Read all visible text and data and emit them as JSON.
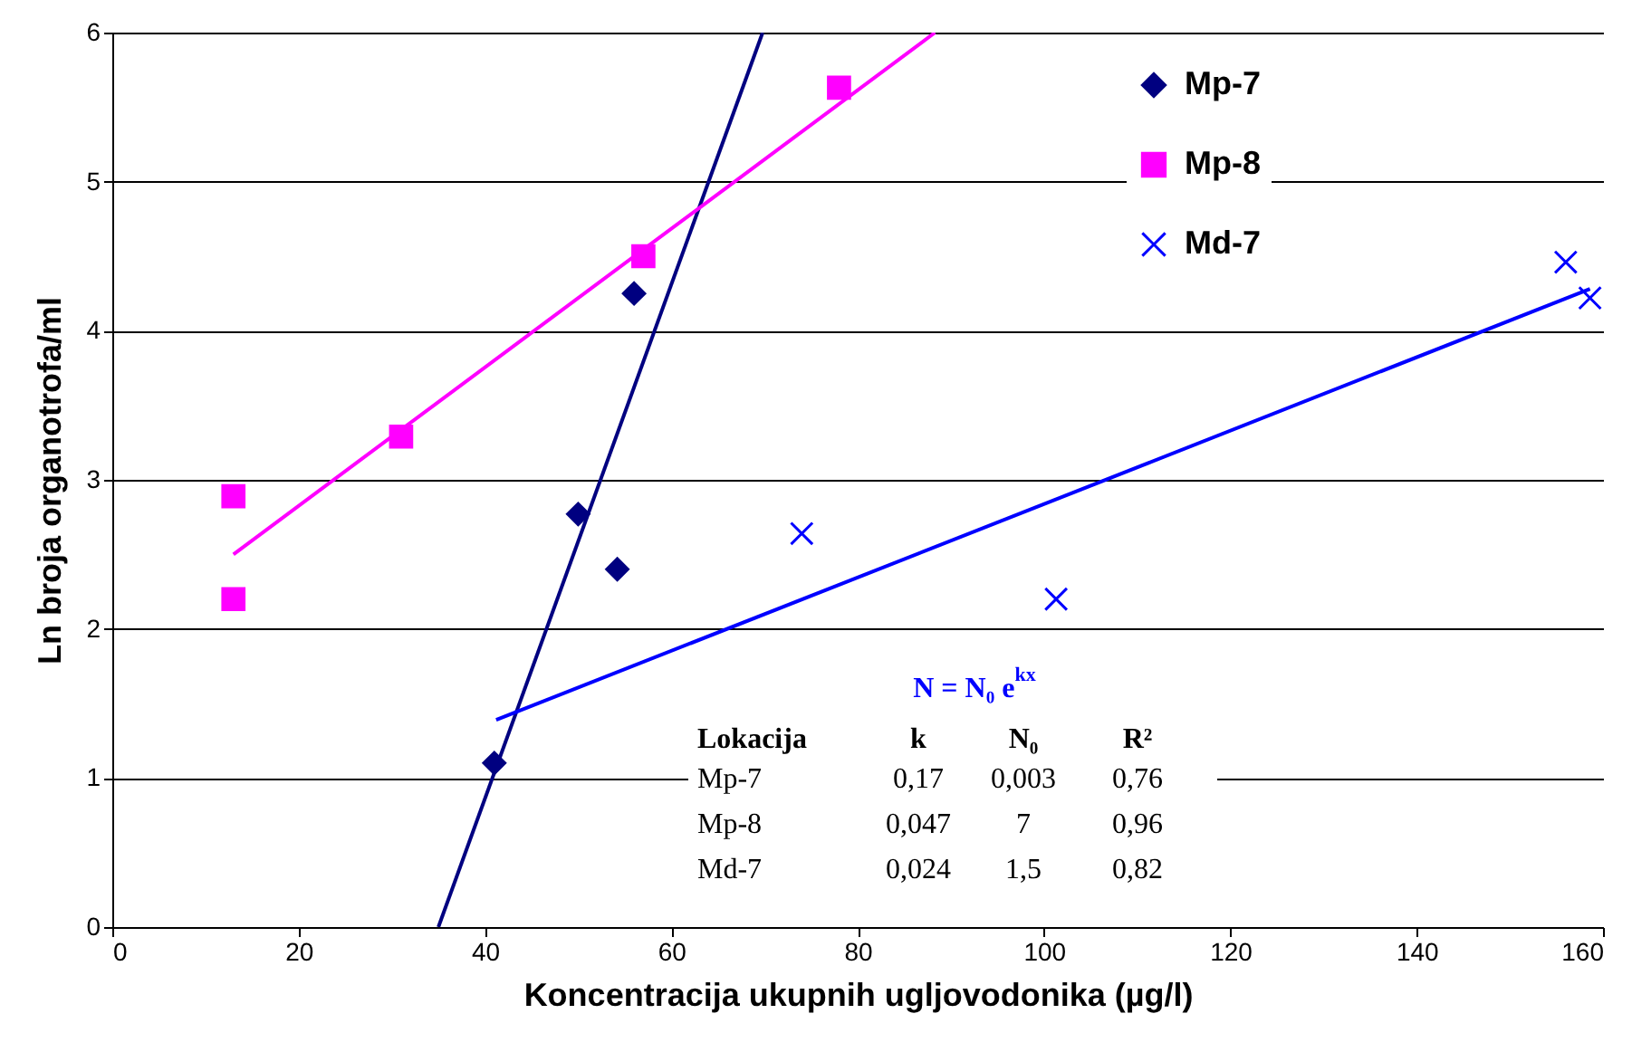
{
  "chart_data": {
    "type": "scatter",
    "xlabel": "Koncentracija ukupnih ugljovodonika (µg/l)",
    "ylabel": "Ln broja organotrofa/ml",
    "xlim": [
      0,
      160
    ],
    "xticks": [
      0,
      20,
      40,
      60,
      80,
      100,
      120,
      140,
      160
    ],
    "ylim": [
      0,
      6
    ],
    "yticks": [
      0,
      1,
      2,
      3,
      4,
      5,
      6
    ],
    "grid": "y",
    "legend": "top right",
    "series": [
      {
        "name": "Mp-7",
        "color": "#000080",
        "marker": "diamond",
        "x": [
          41,
          50,
          54.2,
          56
        ],
        "values": [
          1.1,
          2.77,
          2.4,
          4.25
        ]
      },
      {
        "name": "Mp-8",
        "color": "#ff00ff",
        "marker": "square",
        "x": [
          13,
          13,
          31,
          57,
          78
        ],
        "values": [
          2.89,
          2.2,
          3.29,
          4.5,
          5.63
        ]
      },
      {
        "name": "Md-7",
        "color": "#0000ff",
        "marker": "cross",
        "x": [
          74,
          101.3,
          156,
          158.6
        ],
        "values": [
          2.64,
          2.2,
          4.46,
          4.22
        ]
      },
      {
        "type": "line",
        "color": "#000080",
        "x": [
          35,
          69.8
        ],
        "values": [
          0,
          6
        ]
      },
      {
        "type": "line",
        "color": "#ff00ff",
        "x": [
          13,
          88.3
        ],
        "values": [
          2.5,
          6
        ]
      },
      {
        "type": "line",
        "color": "#0000ff",
        "x": [
          41.2,
          158.6
        ],
        "values": [
          1.39,
          4.28
        ]
      }
    ],
    "annotations": [
      "N = N₀ e$^{kx}$",
      "Lokacija",
      "k",
      "N₀",
      "R²",
      "Mp-7",
      "0,17",
      "0,003",
      "0,76",
      "Mp-8",
      "0,047",
      "7",
      "0,96",
      "Md-7",
      "0,024",
      "1,5",
      "0,82"
    ]
  }
}
